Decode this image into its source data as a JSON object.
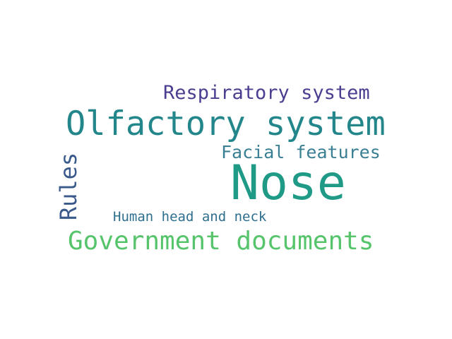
{
  "words": [
    {
      "key": "respiratory",
      "text": "Respiratory system",
      "color": "#4b3d8f",
      "orientation": "horizontal"
    },
    {
      "key": "olfactory",
      "text": "Olfactory system",
      "color": "#23868b",
      "orientation": "horizontal"
    },
    {
      "key": "facial",
      "text": "Facial features",
      "color": "#3a7f93",
      "orientation": "horizontal"
    },
    {
      "key": "nose",
      "text": "Nose",
      "color": "#1f9a86",
      "orientation": "horizontal"
    },
    {
      "key": "rules",
      "text": "Rules",
      "color": "#3a5a8c",
      "orientation": "vertical"
    },
    {
      "key": "human",
      "text": "Human head and neck",
      "color": "#2e6f8e",
      "orientation": "horizontal"
    },
    {
      "key": "government",
      "text": "Government documents",
      "color": "#55c46b",
      "orientation": "horizontal"
    }
  ]
}
